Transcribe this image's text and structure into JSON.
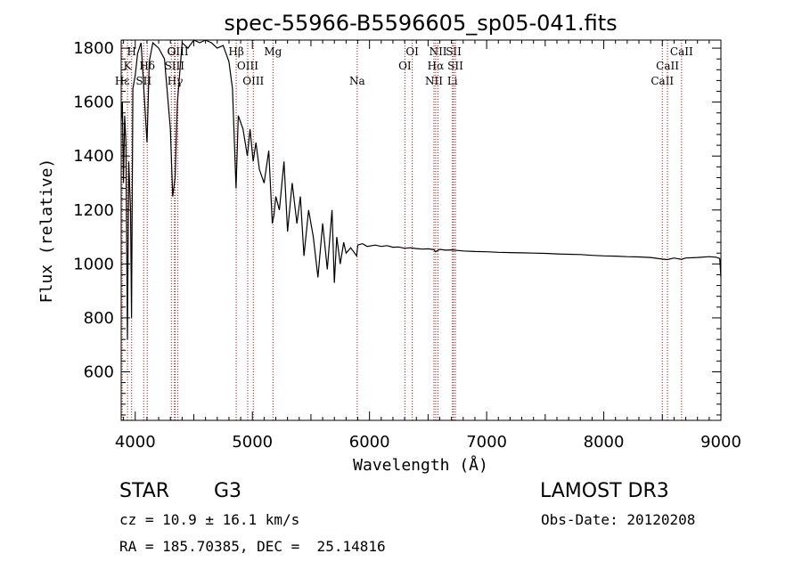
{
  "chart_data": {
    "type": "line",
    "title": "spec-55966-B5596605_sp05-041.fits",
    "xlabel": "Wavelength (Å)",
    "ylabel": "Flux (relative)",
    "xlim": [
      3880,
      9000
    ],
    "ylim": [
      420,
      1830
    ],
    "x_ticks": [
      4000,
      5000,
      6000,
      7000,
      8000,
      9000
    ],
    "x_tick_labels": [
      "4000",
      "5000",
      "6000",
      "7000",
      "8000",
      "9000"
    ],
    "y_ticks": [
      600,
      800,
      1000,
      1200,
      1400,
      1600,
      1800
    ],
    "y_tick_labels": [
      "600",
      "800",
      "1000",
      "1200",
      "1400",
      "1600",
      "1800"
    ],
    "line_color": "#000000",
    "marker_color": "#cc0000",
    "series": [
      {
        "name": "flux",
        "points": [
          [
            3880,
            1530
          ],
          [
            3890,
            1600
          ],
          [
            3900,
            1300
          ],
          [
            3910,
            1550
          ],
          [
            3920,
            1450
          ],
          [
            3933,
            720
          ],
          [
            3945,
            1380
          ],
          [
            3960,
            1200
          ],
          [
            3968,
            800
          ],
          [
            3980,
            1650
          ],
          [
            4000,
            1700
          ],
          [
            4020,
            1780
          ],
          [
            4050,
            1820
          ],
          [
            4080,
            1600
          ],
          [
            4101,
            1450
          ],
          [
            4120,
            1750
          ],
          [
            4150,
            1820
          ],
          [
            4200,
            1800
          ],
          [
            4250,
            1760
          ],
          [
            4300,
            1500
          ],
          [
            4320,
            1250
          ],
          [
            4340,
            1320
          ],
          [
            4360,
            1600
          ],
          [
            4400,
            1820
          ],
          [
            4450,
            1800
          ],
          [
            4500,
            1830
          ],
          [
            4550,
            1820
          ],
          [
            4600,
            1830
          ],
          [
            4650,
            1820
          ],
          [
            4700,
            1800
          ],
          [
            4750,
            1810
          ],
          [
            4800,
            1750
          ],
          [
            4830,
            1650
          ],
          [
            4861,
            1280
          ],
          [
            4880,
            1550
          ],
          [
            4920,
            1500
          ],
          [
            4957,
            1400
          ],
          [
            4980,
            1500
          ],
          [
            5007,
            1380
          ],
          [
            5030,
            1450
          ],
          [
            5060,
            1350
          ],
          [
            5100,
            1300
          ],
          [
            5140,
            1420
          ],
          [
            5170,
            1150
          ],
          [
            5184,
            1180
          ],
          [
            5200,
            1250
          ],
          [
            5230,
            1200
          ],
          [
            5270,
            1380
          ],
          [
            5300,
            1120
          ],
          [
            5340,
            1300
          ],
          [
            5380,
            1150
          ],
          [
            5410,
            1250
          ],
          [
            5440,
            1030
          ],
          [
            5480,
            1200
          ],
          [
            5520,
            1100
          ],
          [
            5560,
            950
          ],
          [
            5600,
            1150
          ],
          [
            5640,
            980
          ],
          [
            5680,
            1200
          ],
          [
            5700,
            930
          ],
          [
            5720,
            1100
          ],
          [
            5750,
            1000
          ],
          [
            5780,
            1080
          ],
          [
            5800,
            1040
          ],
          [
            5840,
            1060
          ],
          [
            5890,
            1030
          ],
          [
            5900,
            1070
          ],
          [
            5940,
            1075
          ],
          [
            5980,
            1065
          ],
          [
            6050,
            1070
          ],
          [
            6100,
            1065
          ],
          [
            6150,
            1068
          ],
          [
            6200,
            1062
          ],
          [
            6250,
            1063
          ],
          [
            6300,
            1058
          ],
          [
            6350,
            1060
          ],
          [
            6400,
            1057
          ],
          [
            6450,
            1055
          ],
          [
            6500,
            1056
          ],
          [
            6550,
            1053
          ],
          [
            6563,
            1045
          ],
          [
            6600,
            1054
          ],
          [
            6650,
            1051
          ],
          [
            6700,
            1052
          ],
          [
            6750,
            1050
          ],
          [
            6800,
            1048
          ],
          [
            6900,
            1046
          ],
          [
            7000,
            1045
          ],
          [
            7100,
            1043
          ],
          [
            7200,
            1042
          ],
          [
            7300,
            1041
          ],
          [
            7400,
            1040
          ],
          [
            7500,
            1039
          ],
          [
            7600,
            1037
          ],
          [
            7700,
            1036
          ],
          [
            7800,
            1035
          ],
          [
            7900,
            1032
          ],
          [
            8000,
            1030
          ],
          [
            8100,
            1029
          ],
          [
            8200,
            1027
          ],
          [
            8300,
            1026
          ],
          [
            8400,
            1024
          ],
          [
            8498,
            1018
          ],
          [
            8542,
            1016
          ],
          [
            8600,
            1022
          ],
          [
            8662,
            1017
          ],
          [
            8700,
            1022
          ],
          [
            8800,
            1024
          ],
          [
            8900,
            1027
          ],
          [
            8960,
            1025
          ],
          [
            8990,
            1020
          ],
          [
            9000,
            950
          ]
        ]
      }
    ],
    "line_markers": [
      {
        "label": "Hε",
        "wavelength": 3889,
        "row": 3
      },
      {
        "label": "K",
        "wavelength": 3934,
        "row": 2
      },
      {
        "label": "H",
        "wavelength": 3969,
        "row": 1
      },
      {
        "label": "Hδ",
        "wavelength": 4102,
        "row": 2
      },
      {
        "label": "SII",
        "wavelength": 4072,
        "row": 3
      },
      {
        "label": "G",
        "wavelength": 4308,
        "row": 1
      },
      {
        "label": "SIII",
        "wavelength": 4335,
        "row": 2
      },
      {
        "label": "Hγ",
        "wavelength": 4341,
        "row": 3
      },
      {
        "label": "OIII",
        "wavelength": 4364,
        "row": 1
      },
      {
        "label": "Hβ",
        "wavelength": 4862,
        "row": 1
      },
      {
        "label": "OIII",
        "wavelength": 4960,
        "row": 2
      },
      {
        "label": "OIII",
        "wavelength": 5008,
        "row": 3
      },
      {
        "label": "Mg",
        "wavelength": 5176,
        "row": 1
      },
      {
        "label": "Na",
        "wavelength": 5895,
        "row": 3
      },
      {
        "label": "OI",
        "wavelength": 6302,
        "row": 2
      },
      {
        "label": "OI",
        "wavelength": 6365,
        "row": 1
      },
      {
        "label": "NII",
        "wavelength": 6550,
        "row": 3
      },
      {
        "label": "Hα",
        "wavelength": 6565,
        "row": 2
      },
      {
        "label": "NII",
        "wavelength": 6585,
        "row": 1
      },
      {
        "label": "Li",
        "wavelength": 6708,
        "row": 3
      },
      {
        "label": "SII",
        "wavelength": 6718,
        "row": 1
      },
      {
        "label": "SII",
        "wavelength": 6733,
        "row": 2
      },
      {
        "label": "CaII",
        "wavelength": 8500,
        "row": 3
      },
      {
        "label": "CaII",
        "wavelength": 8544,
        "row": 2
      },
      {
        "label": "CaII",
        "wavelength": 8664,
        "row": 1
      }
    ]
  },
  "info": {
    "object_class": "STAR",
    "subclass": "G3",
    "survey": "LAMOST DR3",
    "redshift_text": "cz = 10.9 ± 16.1 km/s",
    "obs_date_text": "Obs-Date: 20120208",
    "coords_text": "RA = 185.70385, DEC =  25.14816"
  }
}
